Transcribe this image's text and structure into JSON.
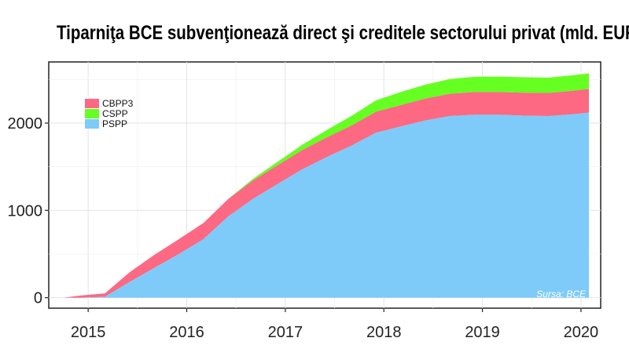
{
  "chart_data": {
    "type": "area",
    "stacked": true,
    "title": "Tiparniţa BCE subvenţionează direct şi creditele sectorului privat (mld. EUR)",
    "xlabel": "",
    "ylabel": "",
    "xlim": [
      2014.6,
      2020.2
    ],
    "ylim": [
      -120,
      2700
    ],
    "x_ticks": [
      2015,
      2016,
      2017,
      2018,
      2019,
      2020
    ],
    "y_ticks": [
      0,
      1000,
      2000
    ],
    "grid": true,
    "legend_position": "top-left",
    "source": "Sursa: BCE",
    "x": [
      2014.75,
      2014.92,
      2015.17,
      2015.42,
      2015.67,
      2015.92,
      2016.17,
      2016.42,
      2016.67,
      2016.92,
      2017.17,
      2017.42,
      2017.67,
      2017.92,
      2018.17,
      2018.42,
      2018.67,
      2018.92,
      2019.17,
      2019.42,
      2019.67,
      2019.92,
      2020.08
    ],
    "series": [
      {
        "name": "PSPP",
        "color": "#7ecbf9",
        "values": [
          0,
          0,
          10,
          180,
          340,
          500,
          670,
          930,
          1130,
          1300,
          1470,
          1610,
          1740,
          1890,
          1960,
          2030,
          2080,
          2095,
          2095,
          2085,
          2080,
          2100,
          2120
        ]
      },
      {
        "name": "CSPP",
        "color": "#66ff22",
        "values": [
          0,
          0,
          0,
          0,
          0,
          0,
          0,
          0,
          20,
          40,
          60,
          85,
          110,
          130,
          150,
          160,
          170,
          175,
          178,
          178,
          175,
          178,
          180
        ]
      },
      {
        "name": "CBPP3",
        "color": "#fd6883",
        "values": [
          0,
          25,
          40,
          110,
          150,
          170,
          185,
          200,
          210,
          215,
          220,
          225,
          230,
          240,
          245,
          250,
          255,
          260,
          260,
          262,
          265,
          270,
          270
        ]
      }
    ]
  }
}
